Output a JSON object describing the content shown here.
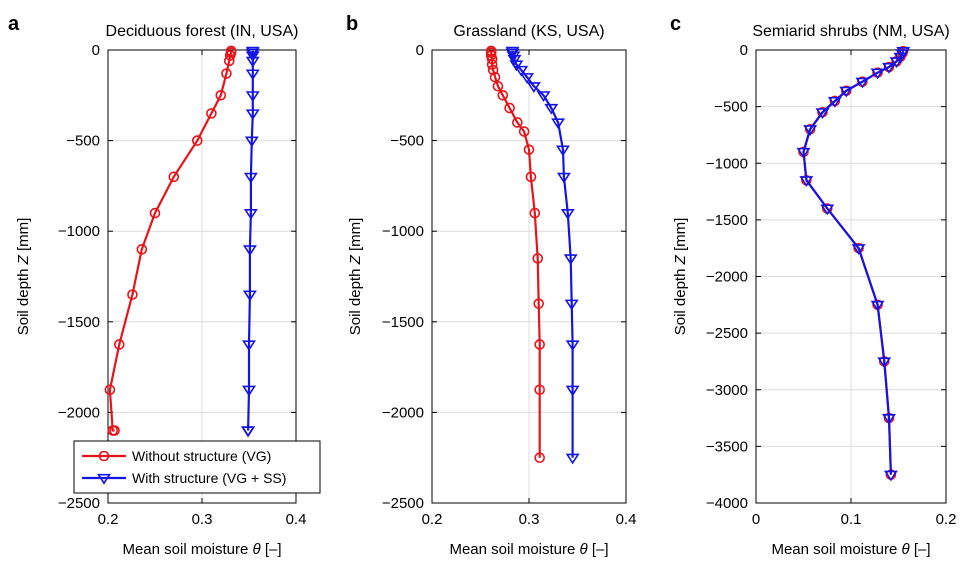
{
  "chart_data": [
    {
      "type": "line",
      "panel_letter": "a",
      "title": "Deciduous forest (IN, USA)",
      "xlabel_prefix": "Mean soil moisture ",
      "xlabel_symbol": "θ",
      "xlabel_suffix": " [–]",
      "ylabel_prefix": "Soil depth ",
      "ylabel_symbol": "Z",
      "ylabel_suffix": " [mm]",
      "xlim": [
        0.2,
        0.4
      ],
      "ylim": [
        -2500,
        0
      ],
      "xticks": [
        0.2,
        0.3,
        0.4
      ],
      "xtick_labels": [
        "0.2",
        "0.3",
        "0.4"
      ],
      "yticks": [
        -2500,
        -2000,
        -1500,
        -1000,
        -500,
        0
      ],
      "ytick_labels": [
        "−2500",
        "−2000",
        "−1500",
        "−1000",
        "−500",
        "0"
      ],
      "grid": true,
      "legend": {
        "position": "bottom",
        "entries": [
          "Without structure (VG)",
          "With structure (VG + SS)"
        ]
      },
      "series": [
        {
          "name": "Without structure (VG)",
          "color": "#e8141a",
          "marker": "circle",
          "x": [
            0.331,
            0.331,
            0.33,
            0.329,
            0.326,
            0.32,
            0.31,
            0.295,
            0.27,
            0.25,
            0.236,
            0.226,
            0.212,
            0.202,
            0.205,
            0.207
          ],
          "y": [
            -5,
            -15,
            -30,
            -60,
            -130,
            -250,
            -350,
            -500,
            -700,
            -900,
            -1100,
            -1350,
            -1625,
            -1875,
            -2100,
            -2100
          ]
        },
        {
          "name": "With structure (VG + SS)",
          "color": "#1414e6",
          "marker": "triangle-down",
          "x": [
            0.354,
            0.354,
            0.354,
            0.354,
            0.354,
            0.354,
            0.354,
            0.353,
            0.352,
            0.352,
            0.351,
            0.351,
            0.35,
            0.35,
            0.349,
            0.349,
            0.349
          ],
          "y": [
            -5,
            -15,
            -30,
            -60,
            -130,
            -250,
            -350,
            -500,
            -700,
            -900,
            -1100,
            -1350,
            -1625,
            -1875,
            -2100,
            -2100,
            -2100
          ]
        }
      ]
    },
    {
      "type": "line",
      "panel_letter": "b",
      "title": "Grassland (KS, USA)",
      "xlabel_prefix": "Mean soil moisture ",
      "xlabel_symbol": "θ",
      "xlabel_suffix": " [–]",
      "ylabel_prefix": "Soil depth ",
      "ylabel_symbol": "Z",
      "ylabel_suffix": " [mm]",
      "xlim": [
        0.2,
        0.4
      ],
      "ylim": [
        -2500,
        0
      ],
      "xticks": [
        0.2,
        0.3,
        0.4
      ],
      "xtick_labels": [
        "0.2",
        "0.3",
        "0.4"
      ],
      "yticks": [
        -2500,
        -2000,
        -1500,
        -1000,
        -500,
        0
      ],
      "ytick_labels": [
        "−2500",
        "−2000",
        "−1500",
        "−1000",
        "−500",
        "0"
      ],
      "grid": true,
      "series": [
        {
          "name": "Without structure (VG)",
          "color": "#e8141a",
          "marker": "circle",
          "x": [
            0.261,
            0.261,
            0.261,
            0.262,
            0.262,
            0.263,
            0.264,
            0.266,
            0.27,
            0.275,
            0.282,
            0.288,
            0.295,
            0.3,
            0.305,
            0.308,
            0.309,
            0.31,
            0.311,
            0.311,
            0.311
          ],
          "y": [
            -5,
            -15,
            -30,
            -50,
            -80,
            -110,
            -150,
            -200,
            -250,
            -320,
            -400,
            -470,
            -550,
            -700,
            -900,
            -1150,
            -1400,
            -1625,
            -1875,
            -2250,
            -2250
          ],
          "shown_points": [
            [
              0.261,
              -5
            ],
            [
              0.261,
              -15
            ],
            [
              0.261,
              -30
            ],
            [
              0.262,
              -50
            ],
            [
              0.262,
              -80
            ],
            [
              0.263,
              -110
            ],
            [
              0.265,
              -150
            ],
            [
              0.268,
              -200
            ],
            [
              0.273,
              -250
            ],
            [
              0.28,
              -320
            ],
            [
              0.288,
              -400
            ],
            [
              0.295,
              -450
            ],
            [
              0.3,
              -550
            ],
            [
              0.302,
              -700
            ],
            [
              0.306,
              -900
            ],
            [
              0.309,
              -1150
            ],
            [
              0.31,
              -1400
            ],
            [
              0.311,
              -1625
            ],
            [
              0.311,
              -1875
            ],
            [
              0.311,
              -2250
            ]
          ]
        },
        {
          "name": "With structure (VG + SS)",
          "color": "#1414e6",
          "marker": "triangle-down",
          "shown_points": [
            [
              0.283,
              -5
            ],
            [
              0.283,
              -15
            ],
            [
              0.284,
              -30
            ],
            [
              0.285,
              -50
            ],
            [
              0.287,
              -80
            ],
            [
              0.292,
              -110
            ],
            [
              0.298,
              -150
            ],
            [
              0.305,
              -200
            ],
            [
              0.315,
              -250
            ],
            [
              0.323,
              -320
            ],
            [
              0.33,
              -400
            ],
            [
              0.335,
              -550
            ],
            [
              0.336,
              -700
            ],
            [
              0.34,
              -900
            ],
            [
              0.343,
              -1150
            ],
            [
              0.344,
              -1400
            ],
            [
              0.345,
              -1625
            ],
            [
              0.345,
              -1875
            ],
            [
              0.345,
              -2250
            ]
          ]
        }
      ]
    },
    {
      "type": "line",
      "panel_letter": "c",
      "title": "Semiarid shrubs (NM, USA)",
      "xlabel_prefix": "Mean soil moisture ",
      "xlabel_symbol": "θ",
      "xlabel_suffix": " [–]",
      "ylabel_prefix": "Soil depth ",
      "ylabel_symbol": "Z",
      "ylabel_suffix": " [mm]",
      "xlim": [
        0,
        0.2
      ],
      "ylim": [
        -4000,
        0
      ],
      "xticks": [
        0,
        0.1,
        0.2
      ],
      "xtick_labels": [
        "0",
        "0.1",
        "0.2"
      ],
      "yticks": [
        -4000,
        -3500,
        -3000,
        -2500,
        -2000,
        -1500,
        -1000,
        -500,
        0
      ],
      "ytick_labels": [
        "−4000",
        "−3500",
        "−3000",
        "−2500",
        "−2000",
        "−1500",
        "−1000",
        "−500",
        "0"
      ],
      "grid": true,
      "series": [
        {
          "name": "Without structure (VG)",
          "color": "#e8141a",
          "marker": "circle",
          "shown_points": [
            [
              0.155,
              -10
            ],
            [
              0.154,
              -30
            ],
            [
              0.152,
              -60
            ],
            [
              0.148,
              -100
            ],
            [
              0.14,
              -150
            ],
            [
              0.128,
              -200
            ],
            [
              0.112,
              -280
            ],
            [
              0.095,
              -360
            ],
            [
              0.083,
              -450
            ],
            [
              0.07,
              -550
            ],
            [
              0.057,
              -700
            ],
            [
              0.05,
              -900
            ],
            [
              0.053,
              -1150
            ],
            [
              0.075,
              -1400
            ],
            [
              0.108,
              -1750
            ],
            [
              0.128,
              -2250
            ],
            [
              0.135,
              -2750
            ],
            [
              0.14,
              -3250
            ],
            [
              0.142,
              -3750
            ]
          ]
        },
        {
          "name": "With structure (VG + SS)",
          "color": "#1414e6",
          "marker": "triangle-down",
          "shown_points": [
            [
              0.155,
              -10
            ],
            [
              0.154,
              -30
            ],
            [
              0.152,
              -60
            ],
            [
              0.148,
              -100
            ],
            [
              0.14,
              -150
            ],
            [
              0.128,
              -200
            ],
            [
              0.112,
              -280
            ],
            [
              0.095,
              -360
            ],
            [
              0.083,
              -450
            ],
            [
              0.07,
              -550
            ],
            [
              0.057,
              -700
            ],
            [
              0.05,
              -900
            ],
            [
              0.053,
              -1150
            ],
            [
              0.075,
              -1400
            ],
            [
              0.108,
              -1750
            ],
            [
              0.128,
              -2250
            ],
            [
              0.135,
              -2750
            ],
            [
              0.14,
              -3250
            ],
            [
              0.142,
              -3750
            ]
          ]
        }
      ]
    }
  ]
}
